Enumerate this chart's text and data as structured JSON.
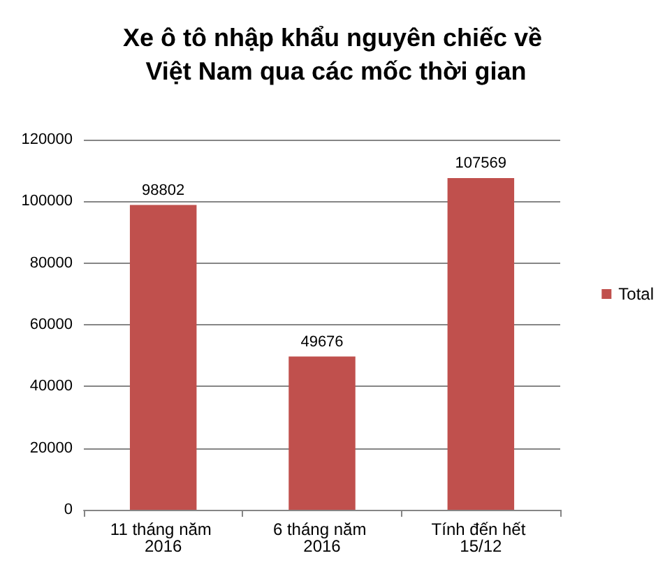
{
  "chart_data": {
    "type": "bar",
    "title": "Xe ô tô nhập khẩu nguyên chiếc về Việt Nam qua các mốc thời gian",
    "categories": [
      "11 tháng năm 2016",
      "6 tháng năm 2016",
      "Tính đến hết 15/12"
    ],
    "series": [
      {
        "name": "Total",
        "color": "#c0504d",
        "values": [
          98802,
          49676,
          107569
        ]
      }
    ],
    "ylim": [
      0,
      120000
    ],
    "yticks": [
      0,
      20000,
      40000,
      60000,
      80000,
      100000,
      120000
    ],
    "grid": "y",
    "legend": "right",
    "data_labels": true
  }
}
